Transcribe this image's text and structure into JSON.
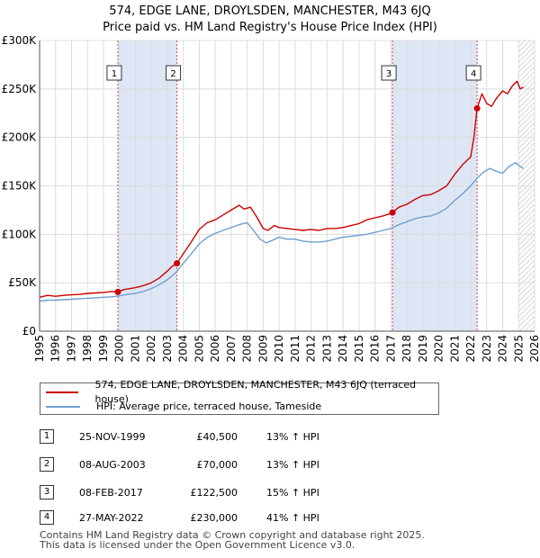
{
  "title_line1": "574, EDGE LANE, DROYLSDEN, MANCHESTER, M43 6JQ",
  "title_line2": "Price paid vs. HM Land Registry's House Price Index (HPI)",
  "colors": {
    "price_line": "#cc0000",
    "hpi_line": "#6f9fcf",
    "shade": "#dde6f5",
    "grid": "#dcdcdc",
    "marker_line": "#cc0000"
  },
  "chart_data": {
    "type": "line",
    "x_range": [
      1995,
      2026
    ],
    "ylim": [
      0,
      300000
    ],
    "y_ticks": [
      {
        "value": 0,
        "label": "£0"
      },
      {
        "value": 50000,
        "label": "£50K"
      },
      {
        "value": 100000,
        "label": "£100K"
      },
      {
        "value": 150000,
        "label": "£150K"
      },
      {
        "value": 200000,
        "label": "£200K"
      },
      {
        "value": 250000,
        "label": "£250K"
      },
      {
        "value": 300000,
        "label": "£300K"
      }
    ],
    "x_ticks": [
      "1995",
      "1996",
      "1997",
      "1998",
      "1999",
      "2000",
      "2001",
      "2002",
      "2003",
      "2004",
      "2005",
      "2006",
      "2007",
      "2008",
      "2009",
      "2010",
      "2011",
      "2012",
      "2013",
      "2014",
      "2015",
      "2016",
      "2017",
      "2018",
      "2019",
      "2020",
      "2021",
      "2022",
      "2023",
      "2024",
      "2025",
      "2026"
    ],
    "shaded_periods": [
      [
        1999.9,
        2003.6
      ],
      [
        2017.1,
        2022.4
      ]
    ],
    "future_hatch_from": 2025.0,
    "sale_markers": [
      {
        "label": "1",
        "x": 1999.9,
        "value": 40500
      },
      {
        "label": "2",
        "x": 2003.6,
        "value": 70000
      },
      {
        "label": "3",
        "x": 2017.1,
        "value": 122500
      },
      {
        "label": "4",
        "x": 2022.4,
        "value": 230000
      }
    ],
    "series": [
      {
        "name": "574, EDGE LANE, DROYLSDEN, MANCHESTER, M43 6JQ (terraced house)",
        "color": "#cc0000",
        "x": [
          1995.0,
          1995.5,
          1996,
          1996.5,
          1997,
          1997.5,
          1998,
          1998.5,
          1999,
          1999.5,
          1999.9,
          2000.3,
          2000.7,
          2001,
          2001.5,
          2002,
          2002.5,
          2003,
          2003.3,
          2003.6,
          2004,
          2004.5,
          2005,
          2005.5,
          2006,
          2006.5,
          2007,
          2007.5,
          2007.8,
          2008.2,
          2008.6,
          2009,
          2009.3,
          2009.7,
          2010,
          2010.5,
          2011,
          2011.5,
          2012,
          2012.5,
          2013,
          2013.5,
          2014,
          2014.5,
          2015,
          2015.5,
          2016,
          2016.5,
          2016.9,
          2017.1,
          2017.5,
          2018,
          2018.5,
          2019,
          2019.5,
          2020,
          2020.5,
          2021,
          2021.5,
          2022,
          2022.2,
          2022.4,
          2022.7,
          2023,
          2023.3,
          2023.6,
          2024,
          2024.3,
          2024.6,
          2024.9,
          2025.1,
          2025.3
        ],
        "values": [
          35000,
          37000,
          36000,
          37000,
          37500,
          38000,
          39000,
          39500,
          40000,
          41000,
          40500,
          43000,
          44000,
          45000,
          47000,
          50000,
          55000,
          62000,
          67000,
          70000,
          80000,
          92000,
          105000,
          112000,
          115000,
          120000,
          125000,
          130000,
          126000,
          128000,
          118000,
          106000,
          104000,
          109000,
          107000,
          106000,
          105000,
          104000,
          105000,
          104000,
          106000,
          106000,
          107000,
          109000,
          111000,
          115000,
          117000,
          119000,
          121000,
          122500,
          128000,
          131000,
          136000,
          140000,
          141000,
          145000,
          150000,
          162000,
          172000,
          180000,
          200000,
          230000,
          245000,
          235000,
          232000,
          240000,
          248000,
          245000,
          253000,
          258000,
          250000,
          252000
        ]
      },
      {
        "name": "HPI: Average price, terraced house, Tameside",
        "color": "#6f9fcf",
        "x": [
          1995.0,
          1995.5,
          1996,
          1996.5,
          1997,
          1997.5,
          1998,
          1998.5,
          1999,
          1999.5,
          2000,
          2000.5,
          2001,
          2001.5,
          2002,
          2002.5,
          2003,
          2003.5,
          2004,
          2004.5,
          2005,
          2005.5,
          2006,
          2006.5,
          2007,
          2007.5,
          2008,
          2008.4,
          2008.8,
          2009.2,
          2009.6,
          2010,
          2010.5,
          2011,
          2011.5,
          2012,
          2012.5,
          2013,
          2013.5,
          2014,
          2014.5,
          2015,
          2015.5,
          2016,
          2016.5,
          2017,
          2017.5,
          2018,
          2018.5,
          2019,
          2019.5,
          2020,
          2020.5,
          2021,
          2021.5,
          2022,
          2022.4,
          2022.8,
          2023.2,
          2023.6,
          2024,
          2024.4,
          2024.8,
          2025.1,
          2025.3
        ],
        "values": [
          31000,
          32000,
          32000,
          32500,
          33000,
          33500,
          34000,
          34500,
          35000,
          35500,
          36500,
          38000,
          39000,
          41000,
          44000,
          48000,
          53000,
          60000,
          70000,
          80000,
          90000,
          97000,
          101000,
          104000,
          107000,
          110000,
          112000,
          104000,
          95000,
          91000,
          94000,
          97000,
          95000,
          95000,
          93000,
          92000,
          92000,
          93000,
          95000,
          97000,
          98000,
          99000,
          100000,
          102000,
          104000,
          106000,
          110000,
          113000,
          116000,
          118000,
          119000,
          122000,
          127000,
          135000,
          142000,
          150000,
          158000,
          164000,
          168000,
          165000,
          163000,
          170000,
          174000,
          170000,
          168000
        ]
      }
    ]
  },
  "legend": {
    "price_label": "574, EDGE LANE, DROYLSDEN, MANCHESTER, M43 6JQ (terraced house)",
    "hpi_label": "HPI: Average price, terraced house, Tameside"
  },
  "sales": [
    {
      "num": "1",
      "date": "25-NOV-1999",
      "price": "£40,500",
      "hpi": "13% ↑ HPI"
    },
    {
      "num": "2",
      "date": "08-AUG-2003",
      "price": "£70,000",
      "hpi": "13% ↑ HPI"
    },
    {
      "num": "3",
      "date": "08-FEB-2017",
      "price": "£122,500",
      "hpi": "15% ↑ HPI"
    },
    {
      "num": "4",
      "date": "27-MAY-2022",
      "price": "£230,000",
      "hpi": "41% ↑ HPI"
    }
  ],
  "footer": {
    "line1": "Contains HM Land Registry data © Crown copyright and database right 2025.",
    "line2": "This data is licensed under the Open Government Licence v3.0."
  }
}
